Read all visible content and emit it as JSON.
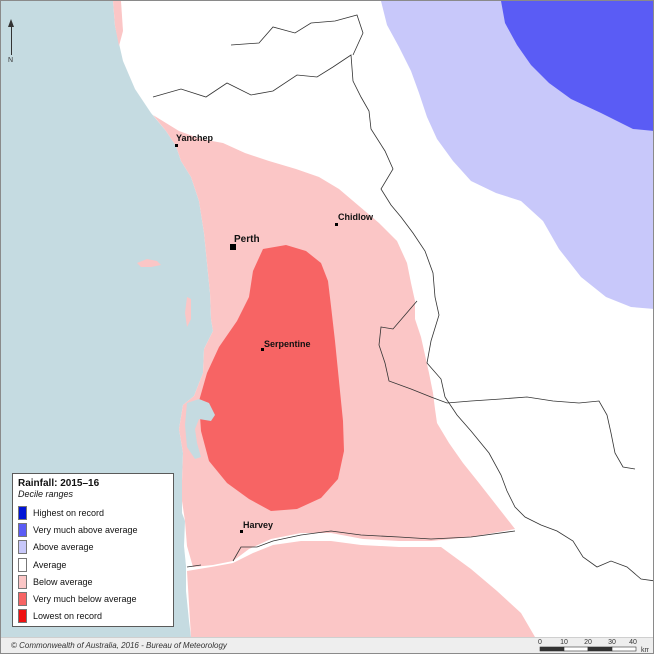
{
  "legend": {
    "title": "Rainfall: 2015–16",
    "subtitle": "Decile ranges",
    "items": [
      {
        "label": "Highest on record",
        "color": "#0014d6"
      },
      {
        "label": "Very much above average",
        "color": "#5a5cf5"
      },
      {
        "label": "Above average",
        "color": "#c8c8fa"
      },
      {
        "label": "Average",
        "color": "#ffffff"
      },
      {
        "label": "Below average",
        "color": "#fbc6c6"
      },
      {
        "label": "Very much below average",
        "color": "#f76464"
      },
      {
        "label": "Lowest on record",
        "color": "#ee1111"
      }
    ]
  },
  "towns": {
    "yanchep": "Yanchep",
    "perth": "Perth",
    "chidlow": "Chidlow",
    "serpentine": "Serpentine",
    "harvey": "Harvey"
  },
  "north_letter": "N",
  "copyright": "© Commonwealth of Australia, 2016 - Bureau of Meteorology",
  "scale": {
    "ticks": [
      "0",
      "10",
      "20",
      "30",
      "40"
    ],
    "unit": "km"
  },
  "colors": {
    "ocean": "#c5dbe1",
    "below_average": "#fbc6c6",
    "very_much_below_average": "#f76464",
    "above_average": "#c8c8fa",
    "very_much_above_average": "#5a5cf5",
    "average": "#ffffff"
  }
}
